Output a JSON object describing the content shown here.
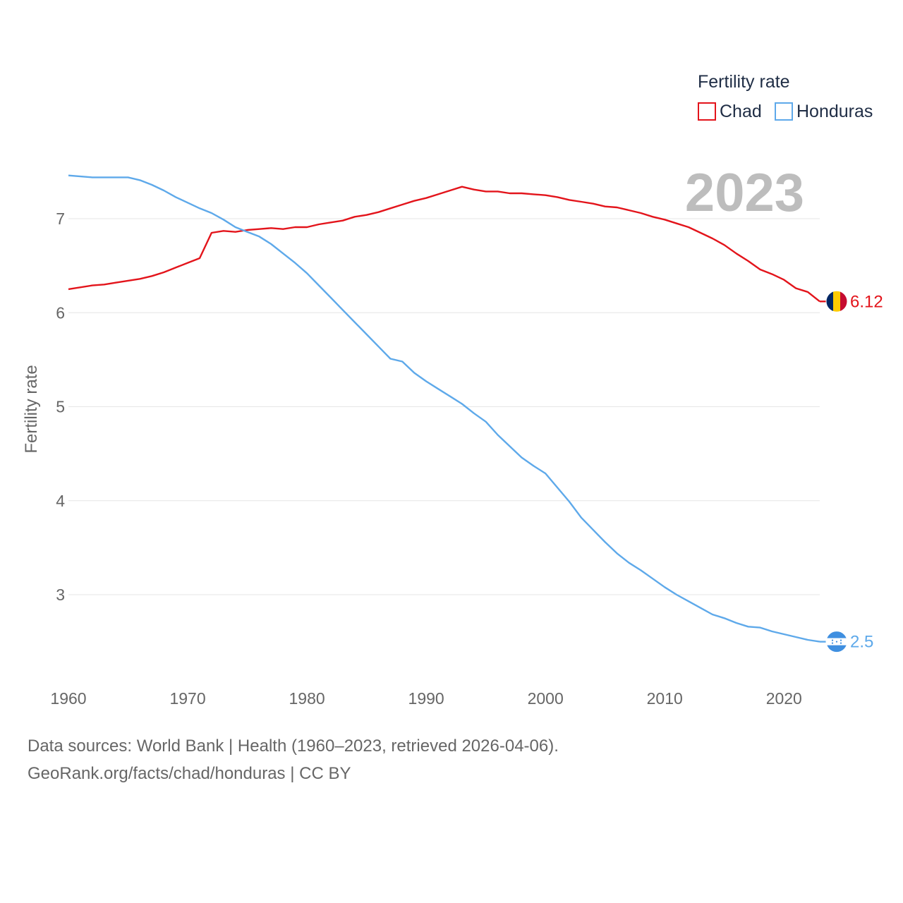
{
  "chart_data": {
    "type": "line",
    "ylabel": "Fertility rate",
    "xlim": [
      1960,
      2023
    ],
    "ylim": [
      2.3,
      7.6
    ],
    "yticks": [
      3,
      4,
      5,
      6,
      7
    ],
    "xticks": [
      1960,
      1970,
      1980,
      1990,
      2000,
      2010,
      2020
    ],
    "grid": true,
    "legend": {
      "title": "Fertility rate",
      "placement": "top-right"
    },
    "year_label": "2023",
    "series": [
      {
        "name": "Chad",
        "color": "#e3141b",
        "end_label": "6.12",
        "x": [
          1960,
          1962,
          1963,
          1964,
          1965,
          1966,
          1967,
          1968,
          1969,
          1970,
          1971,
          1972,
          1973,
          1974,
          1975,
          1976,
          1977,
          1978,
          1979,
          1980,
          1981,
          1982,
          1983,
          1984,
          1985,
          1986,
          1987,
          1988,
          1989,
          1990,
          1991,
          1992,
          1993,
          1994,
          1995,
          1996,
          1997,
          1998,
          1999,
          2000,
          2001,
          2002,
          2003,
          2004,
          2005,
          2006,
          2007,
          2008,
          2009,
          2010,
          2011,
          2012,
          2013,
          2014,
          2015,
          2016,
          2017,
          2018,
          2019,
          2020,
          2021,
          2022,
          2023
        ],
        "values": [
          6.25,
          6.29,
          6.3,
          6.32,
          6.34,
          6.36,
          6.39,
          6.43,
          6.48,
          6.53,
          6.58,
          6.85,
          6.87,
          6.86,
          6.88,
          6.89,
          6.9,
          6.89,
          6.91,
          6.91,
          6.94,
          6.96,
          6.98,
          7.02,
          7.04,
          7.07,
          7.11,
          7.15,
          7.19,
          7.22,
          7.26,
          7.3,
          7.34,
          7.31,
          7.29,
          7.29,
          7.27,
          7.27,
          7.26,
          7.25,
          7.23,
          7.2,
          7.18,
          7.16,
          7.13,
          7.12,
          7.09,
          7.06,
          7.02,
          6.99,
          6.95,
          6.91,
          6.85,
          6.79,
          6.72,
          6.63,
          6.55,
          6.46,
          6.41,
          6.35,
          6.26,
          6.22,
          6.12
        ]
      },
      {
        "name": "Honduras",
        "color": "#5ea9ea",
        "end_label": "2.5",
        "x": [
          1960,
          1962,
          1963,
          1964,
          1965,
          1966,
          1967,
          1968,
          1969,
          1970,
          1971,
          1972,
          1973,
          1974,
          1975,
          1976,
          1977,
          1978,
          1979,
          1980,
          1981,
          1982,
          1983,
          1984,
          1985,
          1986,
          1987,
          1988,
          1989,
          1990,
          1991,
          1992,
          1993,
          1994,
          1995,
          1996,
          1997,
          1998,
          1999,
          2000,
          2001,
          2002,
          2003,
          2004,
          2005,
          2006,
          2007,
          2008,
          2009,
          2010,
          2011,
          2012,
          2013,
          2014,
          2015,
          2016,
          2017,
          2018,
          2019,
          2020,
          2021,
          2022,
          2023
        ],
        "values": [
          7.46,
          7.44,
          7.44,
          7.44,
          7.44,
          7.41,
          7.36,
          7.3,
          7.23,
          7.17,
          7.11,
          7.06,
          6.99,
          6.91,
          6.86,
          6.81,
          6.73,
          6.63,
          6.53,
          6.42,
          6.29,
          6.16,
          6.03,
          5.9,
          5.77,
          5.64,
          5.51,
          5.48,
          5.36,
          5.27,
          5.19,
          5.11,
          5.03,
          4.93,
          4.84,
          4.7,
          4.58,
          4.46,
          4.37,
          4.29,
          4.14,
          3.99,
          3.82,
          3.69,
          3.56,
          3.44,
          3.34,
          3.26,
          3.17,
          3.08,
          3.0,
          2.93,
          2.86,
          2.79,
          2.75,
          2.7,
          2.66,
          2.65,
          2.61,
          2.58,
          2.55,
          2.52,
          2.5
        ]
      }
    ]
  },
  "source_line1": "Data sources: World Bank | Health (1960–2023, retrieved 2026-04-06).",
  "source_line2": "GeoRank.org/facts/chad/honduras | CC BY"
}
